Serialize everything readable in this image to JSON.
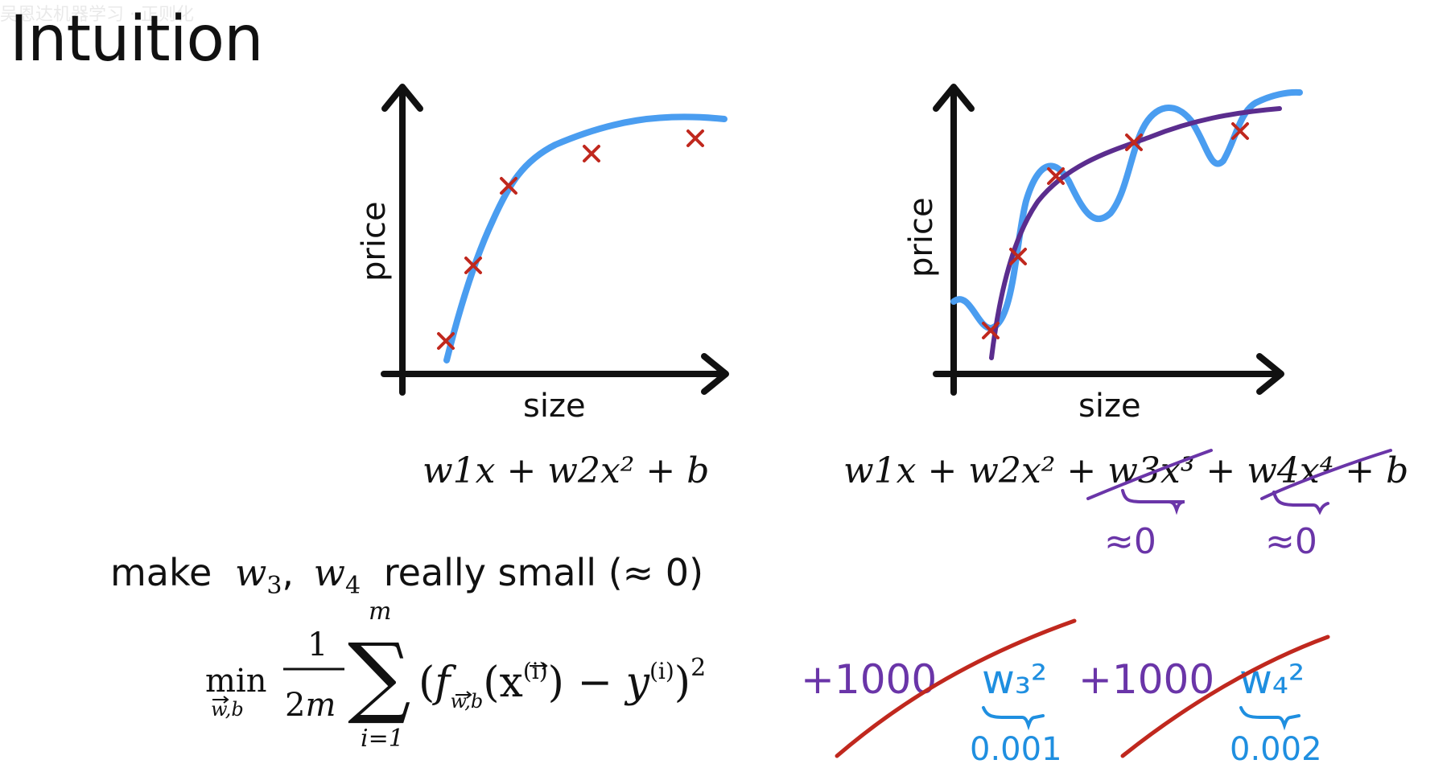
{
  "slide": {
    "title": "Intuition",
    "watermark": "吴恩达机器学习 · 正则化"
  },
  "charts": {
    "left": {
      "x_label": "size",
      "y_label": "price"
    },
    "right": {
      "x_label": "size",
      "y_label": "price"
    }
  },
  "formulas": {
    "left": "w1x + w2x² + b",
    "right": "w1x + w2x² + w3x³ + w4x⁴ + b",
    "make_small": {
      "prefix": "make",
      "w3": "w",
      "w3_sub": "3",
      "comma": ",",
      "w4": "w",
      "w4_sub": "4",
      "suffix": "really small (≈ 0)"
    }
  },
  "annotations": {
    "approx_zero_1": "≈0",
    "approx_zero_2": "≈0",
    "plus_1000_1": "+1000",
    "plus_1000_2": "+1000",
    "w3_sq": "w₃²",
    "w4_sq": "w₄²",
    "val_1": "0.001",
    "val_2": "0.002"
  },
  "cost": {
    "min": "min",
    "min_sub": "w,b",
    "num": "1",
    "den_2": "2",
    "den_m": "m",
    "sum_top": "m",
    "sum_bottom": "i=1",
    "f": "f",
    "f_sub": "w,b",
    "x": "x",
    "i_sup": "(i)",
    "y": "y",
    "y_sup": "(i)",
    "sq": "2"
  },
  "colors": {
    "fit_curve": "#4a9df0",
    "smooth_curve": "#5b2d8e",
    "data_marker": "#c0281e",
    "annotation_purple": "#6a35a8",
    "annotation_blue": "#1f8fe0",
    "cross_out_red": "#c0281e",
    "m_blue": "#1f8fe0"
  }
}
